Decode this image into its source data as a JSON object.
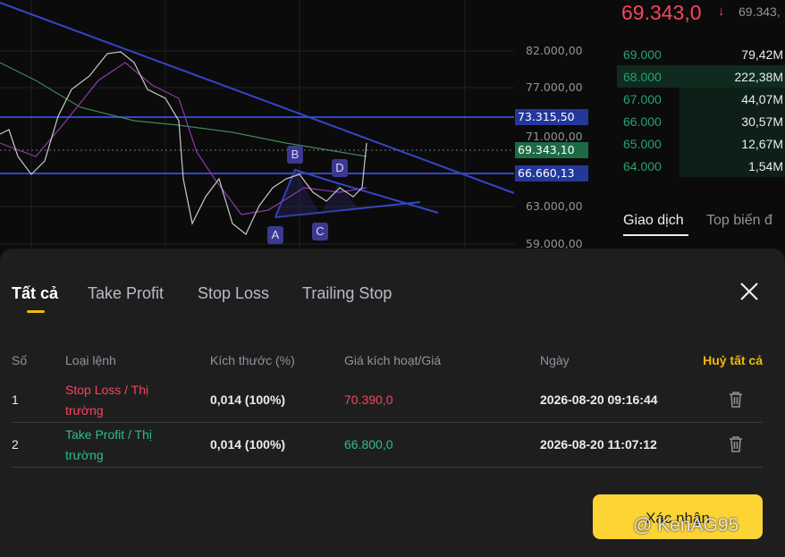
{
  "chart": {
    "price_labels": [
      "82.000,00",
      "77.000,00",
      "73.315,50",
      "71.000,00",
      "69.343,10",
      "66.660,13",
      "63.000,00",
      "59.000,00"
    ],
    "pattern_labels": [
      "A",
      "B",
      "C",
      "D"
    ]
  },
  "market": {
    "last_price": "69.343,0",
    "last_price_secondary": "69.343,",
    "order_book": [
      {
        "price": "69.000",
        "amount": "79,42M"
      },
      {
        "price": "68.000",
        "amount": "222,38M"
      },
      {
        "price": "67.000",
        "amount": "44,07M"
      },
      {
        "price": "66.000",
        "amount": "30,57M"
      },
      {
        "price": "65.000",
        "amount": "12,67M"
      },
      {
        "price": "64.000",
        "amount": "1,54M"
      }
    ],
    "tabs": [
      "Giao dịch",
      "Top biến đ"
    ]
  },
  "sheet": {
    "tabs": [
      "Tất cả",
      "Take Profit",
      "Stop Loss",
      "Trailing Stop"
    ],
    "columns": [
      "Số",
      "Loại lệnh",
      "Kích thước (%)",
      "Giá kích hoạt/Giá",
      "Ngày",
      "Huỷ tất cả"
    ],
    "rows": [
      [
        "1",
        "Stop Loss / Thị trường",
        "0,014 (100%)",
        "70.390,0",
        "2026-08-20 09:16:44"
      ],
      [
        "2",
        "Take Profit / Thị trường",
        "0,014 (100%)",
        "66.800,0",
        "2026-08-20 11:07:12"
      ]
    ],
    "confirm": "Xác nhận"
  },
  "watermark": "@ KenAG95"
}
